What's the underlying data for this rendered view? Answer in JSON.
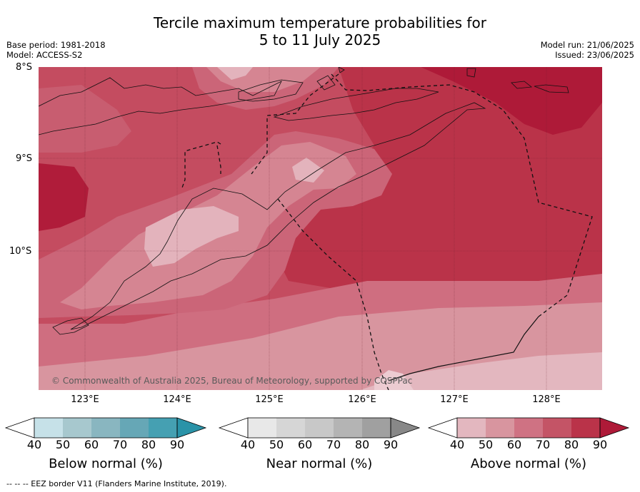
{
  "title_line1": "Tercile maximum temperature probabilities for",
  "title_line2": "5 to 11 July 2025",
  "base_period": "Base period: 1981-2018",
  "model": "Model: ACCESS-S2",
  "model_run": "Model run: 21/06/2025",
  "issued": "Issued: 23/06/2025",
  "latitudes": [
    "8°S",
    "9°S",
    "10°S"
  ],
  "longitudes": [
    "123°E",
    "124°E",
    "125°E",
    "126°E",
    "127°E",
    "128°E"
  ],
  "copyright": "© Commonwealth of Australia 2025, Bureau of Meteorology, supported by COSPPac",
  "colorbars": [
    {
      "label": "Below normal (%)",
      "ticks": [
        "40",
        "50",
        "60",
        "70",
        "80",
        "90"
      ],
      "colors": [
        "#c6e1e8",
        "#a7c8ce",
        "#89b6c0",
        "#66a7b6",
        "#45a0b2",
        "#2a93a8"
      ]
    },
    {
      "label": "Near normal (%)",
      "ticks": [
        "40",
        "50",
        "60",
        "70",
        "80",
        "90"
      ],
      "colors": [
        "#e8e8e8",
        "#d6d6d6",
        "#c8c8c8",
        "#b4b4b4",
        "#a0a0a0",
        "#888888"
      ]
    },
    {
      "label": "Above normal (%)",
      "ticks": [
        "40",
        "50",
        "60",
        "70",
        "80",
        "90"
      ],
      "colors": [
        "#e3b7bf",
        "#d8959f",
        "#cf7283",
        "#c45466",
        "#ba3349",
        "#ae1a38"
      ]
    }
  ],
  "footnote": "--  --  -- EEZ border V11 (Flanders Marine Institute, 2019).",
  "map_colors": {
    "c60": "#cf7283",
    "c50": "#d8959f",
    "c40": "#e3b7bf",
    "c70": "#c45466",
    "c80": "#ba3349",
    "c90": "#ae1a38"
  }
}
